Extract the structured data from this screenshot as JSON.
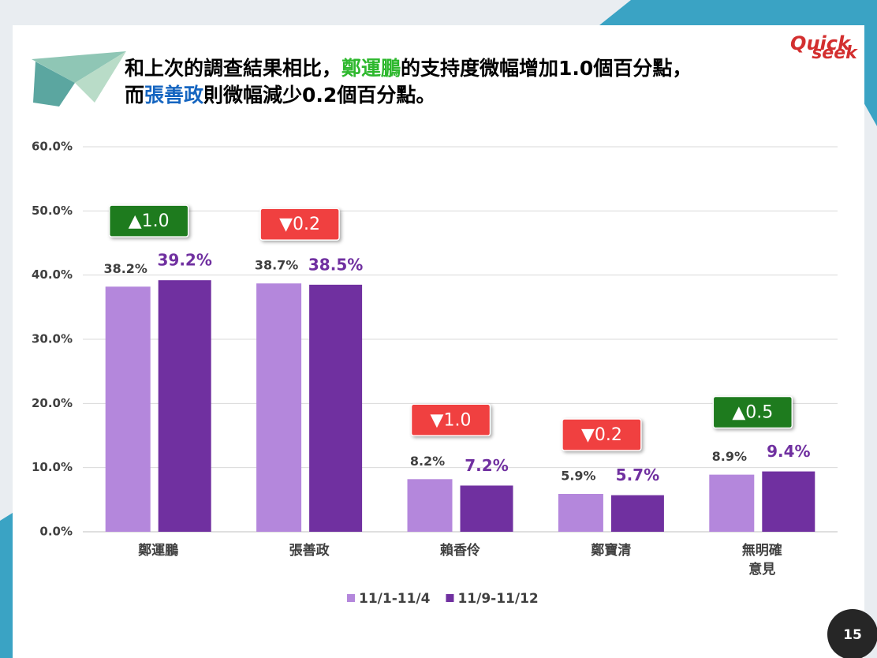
{
  "chart_data": {
    "type": "bar",
    "title_lines": [
      [
        {
          "text": "和上次的調查結果相比，",
          "color": "#000000"
        },
        {
          "text": "鄭運鵬",
          "color": "#2eb82e"
        },
        {
          "text": "的支持度微幅增加1.0個百分點，",
          "color": "#000000"
        }
      ],
      [
        {
          "text": "而",
          "color": "#000000"
        },
        {
          "text": "張善政",
          "color": "#1565c0"
        },
        {
          "text": "則微幅減少0.2個百分點。",
          "color": "#000000"
        }
      ]
    ],
    "categories": [
      "鄭運鵬",
      "張善政",
      "賴香伶",
      "鄭寶清",
      "無明確\n意見"
    ],
    "series": [
      {
        "name": "11/1-11/4",
        "color": "#b487dc",
        "label_color": "#404040",
        "values": [
          38.2,
          38.7,
          8.2,
          5.9,
          8.9
        ],
        "value_labels": [
          "38.2%",
          "38.7%",
          "8.2%",
          "5.9%",
          "8.9%"
        ]
      },
      {
        "name": "11/9-11/12",
        "color": "#7030a0",
        "label_color": "#7030a0",
        "values": [
          39.2,
          38.5,
          7.2,
          5.7,
          9.4
        ],
        "value_labels": [
          "39.2%",
          "38.5%",
          "7.2%",
          "5.7%",
          "9.4%"
        ]
      }
    ],
    "changes": [
      {
        "label": "▲1.0",
        "color": "#1e7b1e"
      },
      {
        "label": "▼0.2",
        "color": "#f04040"
      },
      {
        "label": "▼1.0",
        "color": "#f04040"
      },
      {
        "label": "▼0.2",
        "color": "#f04040"
      },
      {
        "label": "▲0.5",
        "color": "#1e7b1e"
      }
    ],
    "ylim": [
      0,
      60
    ],
    "yticks": [
      {
        "value": 0,
        "label": "0.0%"
      },
      {
        "value": 10,
        "label": "10.0%"
      },
      {
        "value": 20,
        "label": "20.0%"
      },
      {
        "value": 30,
        "label": "30.0%"
      },
      {
        "value": 40,
        "label": "40.0%"
      },
      {
        "value": 50,
        "label": "50.0%"
      },
      {
        "value": 60,
        "label": "60.0%"
      }
    ],
    "grid": true
  },
  "logo": {
    "top": "Quick",
    "bottom": "seek"
  },
  "page_number": "15"
}
